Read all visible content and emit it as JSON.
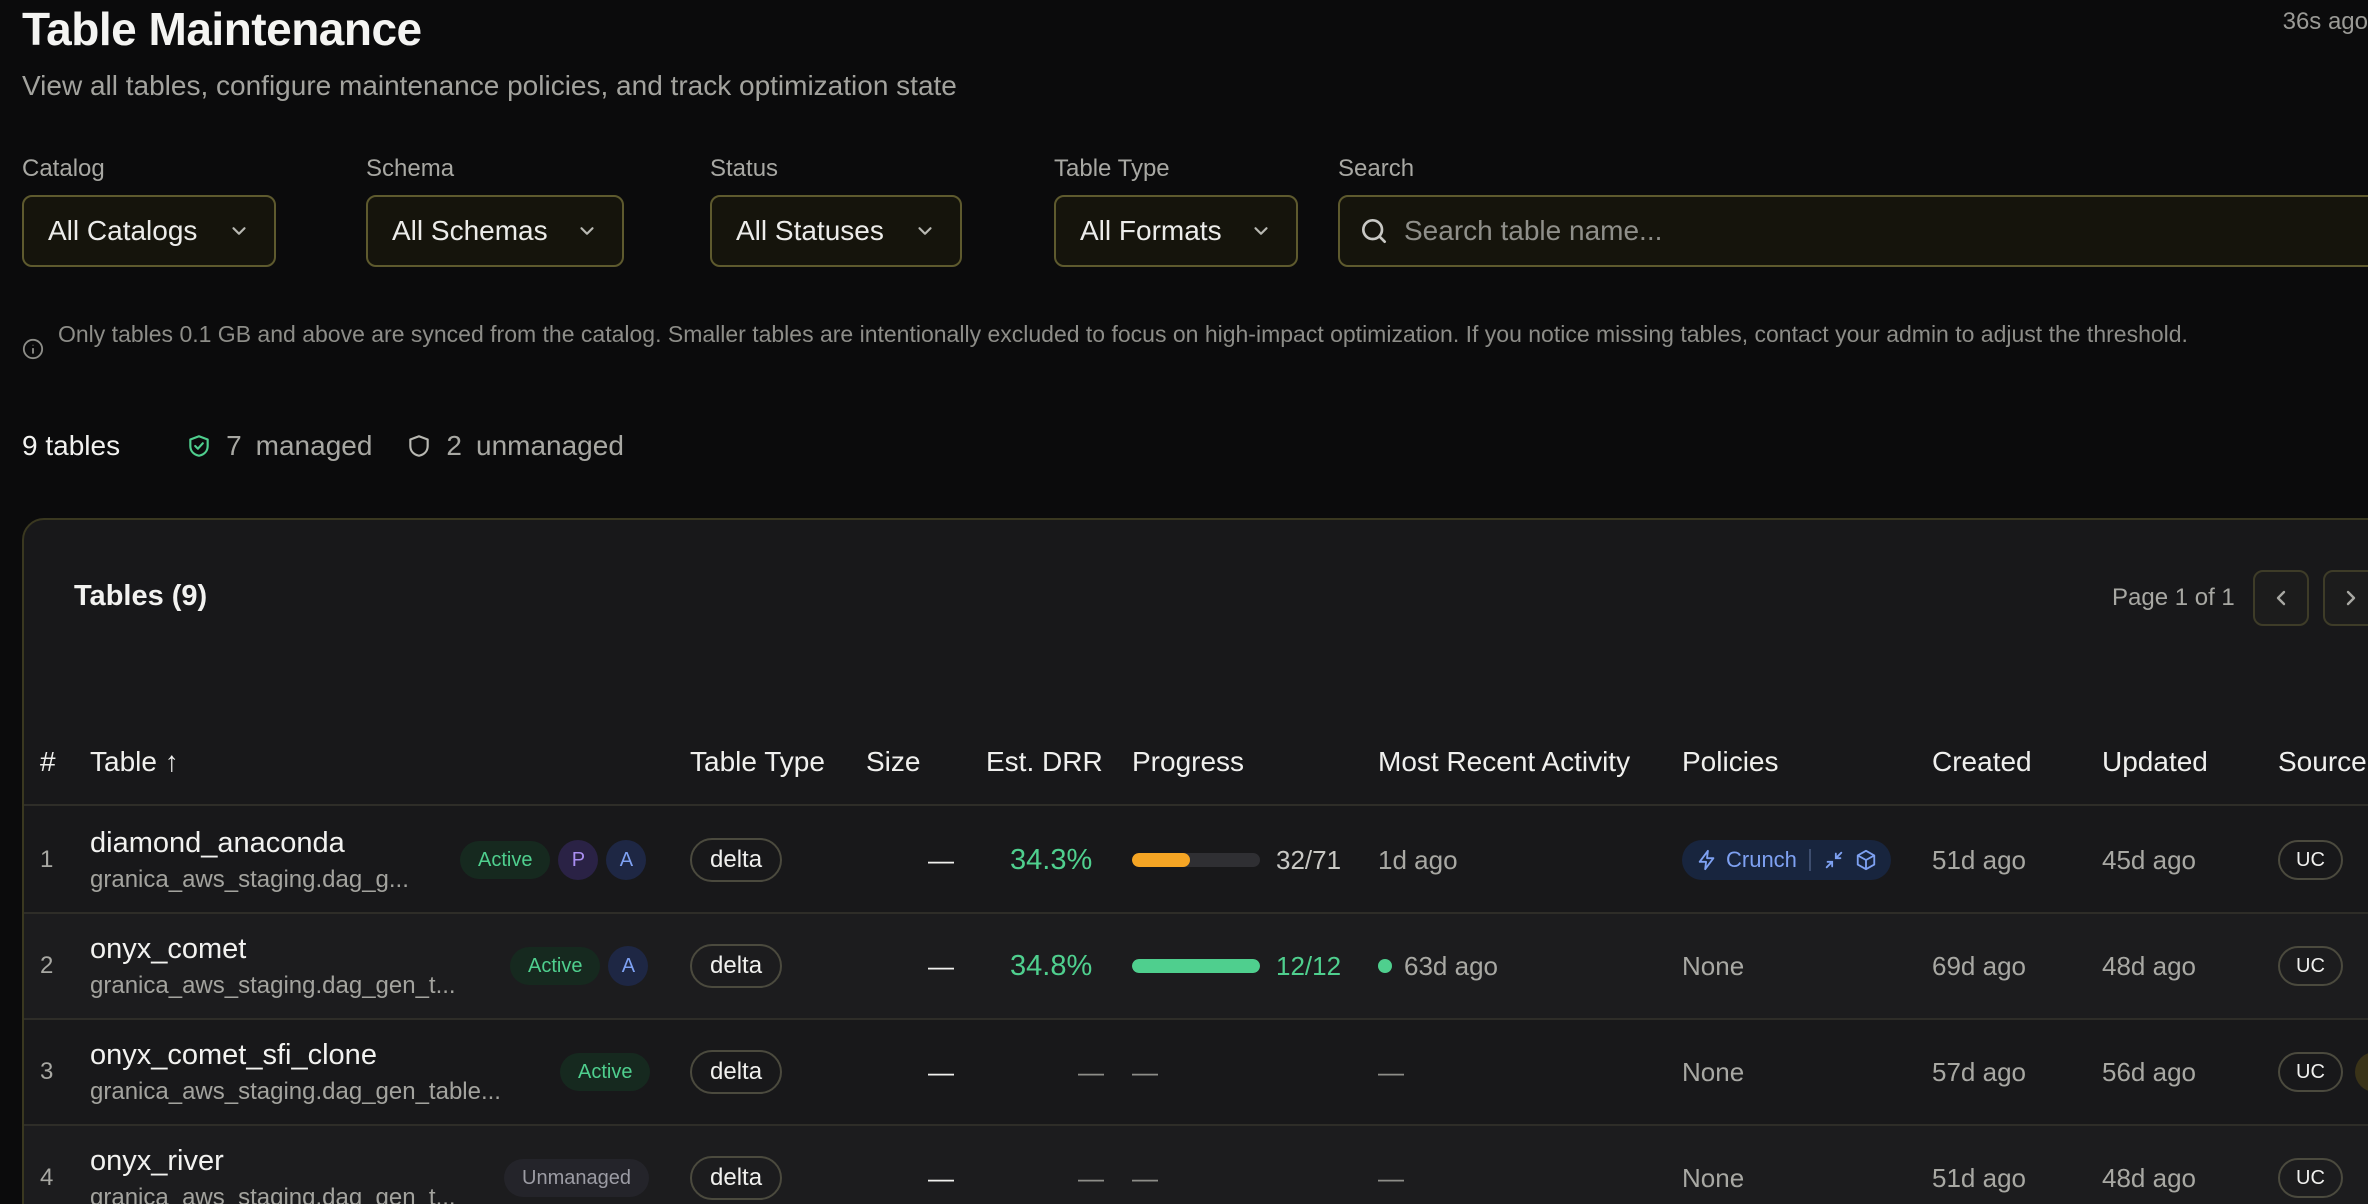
{
  "header": {
    "title": "Table Maintenance",
    "subtitle": "View all tables, configure maintenance policies, and track optimization state",
    "refreshed": "36s ago"
  },
  "filters": {
    "catalog": {
      "label": "Catalog",
      "value": "All Catalogs"
    },
    "schema": {
      "label": "Schema",
      "value": "All Schemas"
    },
    "status": {
      "label": "Status",
      "value": "All Statuses"
    },
    "table_type": {
      "label": "Table Type",
      "value": "All Formats"
    },
    "search": {
      "label": "Search",
      "placeholder": "Search table name..."
    }
  },
  "notice": "Only tables 0.1 GB and above are synced from the catalog. Smaller tables are intentionally excluded to focus on high-impact optimization. If you notice missing tables, contact your admin to adjust the threshold.",
  "summary": {
    "count": "9 tables",
    "managed_count": "7",
    "managed_label": "managed",
    "unmanaged_count": "2",
    "unmanaged_label": "unmanaged"
  },
  "table": {
    "title": "Tables (9)",
    "page": "Page 1 of 1",
    "columns": {
      "num": "#",
      "table": "Table ↑",
      "type": "Table Type",
      "size": "Size",
      "drr": "Est. DRR",
      "progress": "Progress",
      "activity": "Most Recent Activity",
      "policies": "Policies",
      "created": "Created",
      "updated": "Updated",
      "source": "Source"
    },
    "rows": [
      {
        "num": "1",
        "name": "diamond_anaconda",
        "path": "granica_aws_staging.dag_g...",
        "status": "Active",
        "p_badge": "P",
        "a_badge": "A",
        "type": "delta",
        "size": "—",
        "drr": "34.3%",
        "progress_text": "32/71",
        "progress_value": 0.45,
        "activity": "1d ago",
        "policy": "Crunch",
        "created": "51d ago",
        "updated": "45d ago",
        "source": "UC"
      },
      {
        "num": "2",
        "name": "onyx_comet",
        "path": "granica_aws_staging.dag_gen_t...",
        "status": "Active",
        "a_badge": "A",
        "type": "delta",
        "size": "—",
        "drr": "34.8%",
        "progress_text": "12/12",
        "progress_value": 1.0,
        "activity": "63d ago",
        "policy": "None",
        "created": "69d ago",
        "updated": "48d ago",
        "source": "UC"
      },
      {
        "num": "3",
        "name": "onyx_comet_sfi_clone",
        "path": "granica_aws_staging.dag_gen_table...",
        "status": "Active",
        "type": "delta",
        "size": "—",
        "drr": "—",
        "progress_text": "—",
        "activity": "—",
        "policy": "None",
        "created": "57d ago",
        "updated": "56d ago",
        "source": "UC"
      },
      {
        "num": "4",
        "name": "onyx_river",
        "path": "granica_aws_staging.dag_gen_t...",
        "status": "Unmanaged",
        "type": "delta",
        "size": "—",
        "drr": "—",
        "progress_text": "—",
        "activity": "—",
        "policy": "None",
        "created": "51d ago",
        "updated": "48d ago",
        "source": "UC"
      }
    ]
  },
  "colors": {
    "accent_green": "#4fcf8e",
    "progress_orange": "#f5a524",
    "border_olive": "#5e5a2e",
    "policy_blue": "#7ea1f2"
  }
}
